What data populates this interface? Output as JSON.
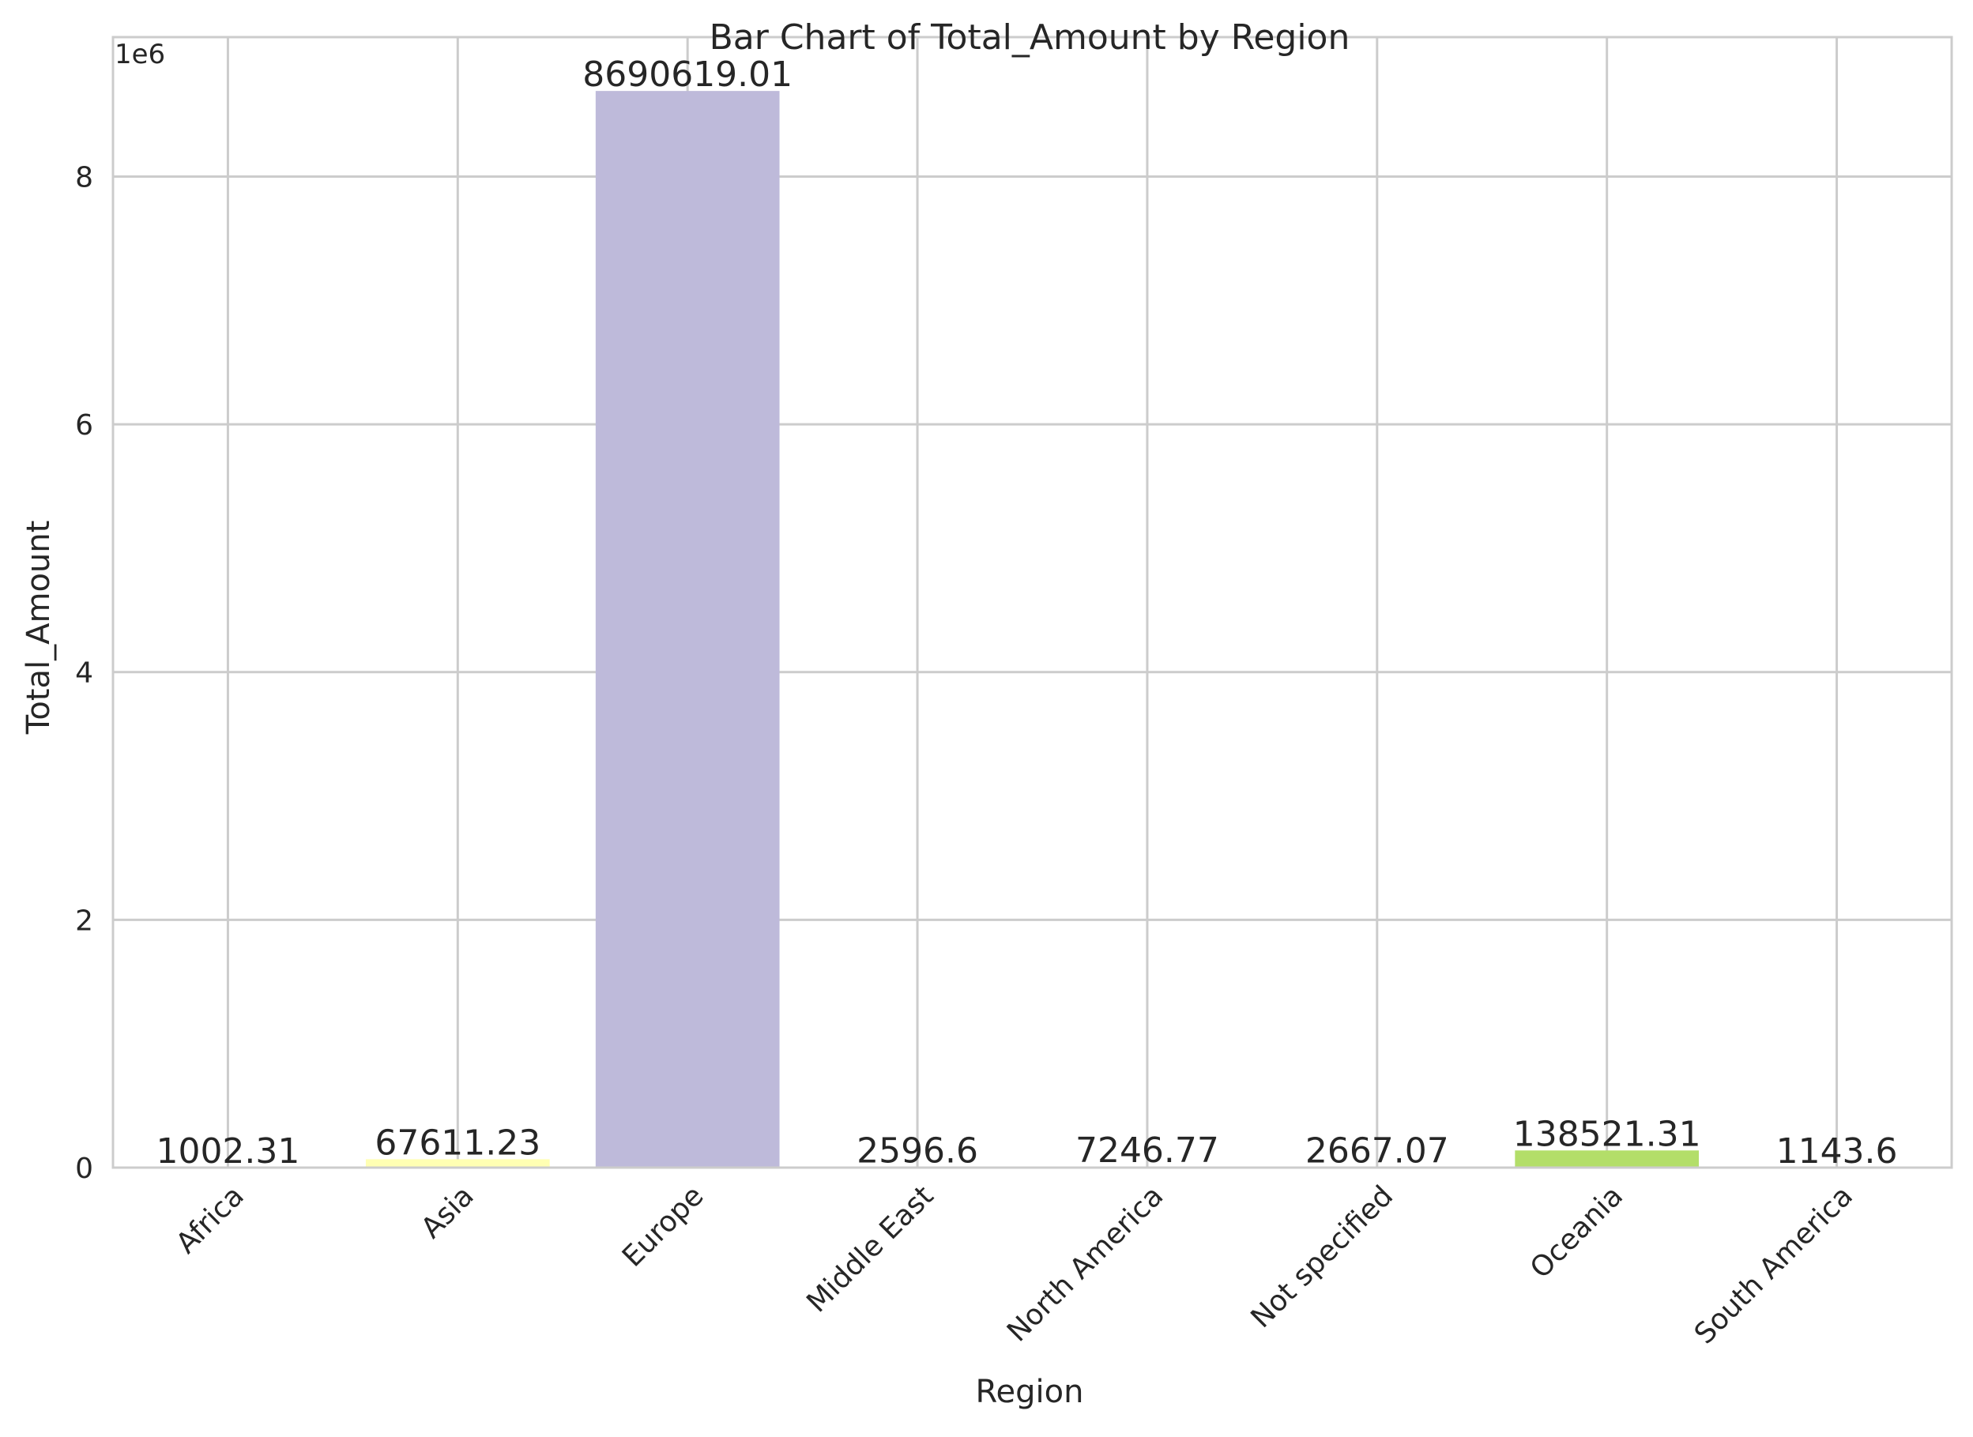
{
  "chart_data": {
    "type": "bar",
    "title": "Bar Chart of Total_Amount by Region",
    "xlabel": "Region",
    "ylabel": "Total_Amount",
    "y_offset_text": "1e6",
    "categories": [
      "Africa",
      "Asia",
      "Europe",
      "Middle East",
      "North America",
      "Not specified",
      "Oceania",
      "South America"
    ],
    "values": [
      1002.31,
      67611.23,
      8690619.01,
      2596.6,
      7246.77,
      2667.07,
      138521.31,
      1143.6
    ],
    "value_labels": [
      "1002.31",
      "67611.23",
      "8690619.01",
      "2596.6",
      "7246.77",
      "2667.07",
      "138521.31",
      "1143.6"
    ],
    "bar_colors": [
      "#8dd3c7",
      "#ffffb3",
      "#bebada",
      "#fb8072",
      "#80b1d3",
      "#fdb462",
      "#b3de69",
      "#fccde5"
    ],
    "yticks": [
      0,
      2000000,
      4000000,
      6000000,
      8000000
    ],
    "ytick_labels": [
      "0",
      "2",
      "4",
      "6",
      "8"
    ],
    "ylim": [
      0,
      9125149.96
    ],
    "grid": true,
    "legend": "none",
    "colors": {
      "background": "#ffffff",
      "grid": "#cccccc",
      "spine": "#cccccc",
      "text": "#262626"
    }
  }
}
